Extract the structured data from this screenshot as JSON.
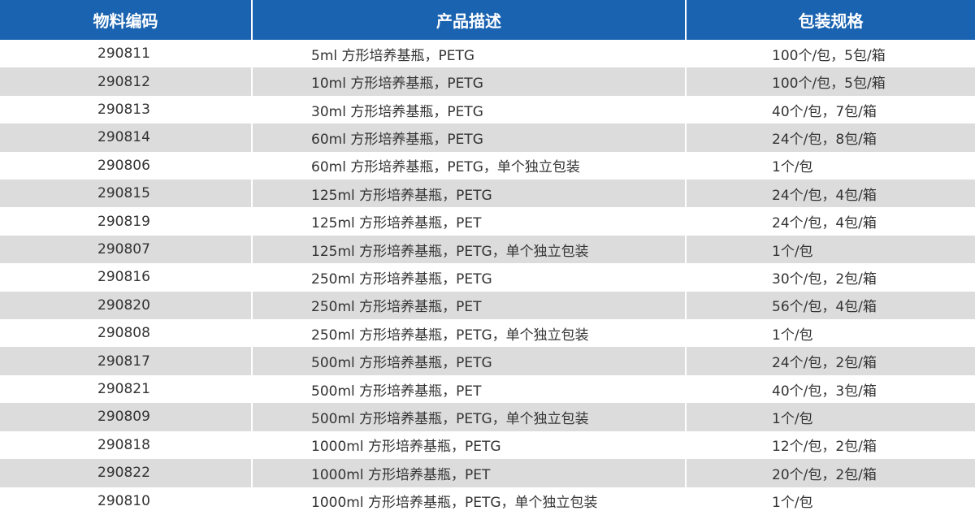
{
  "table": {
    "headers": [
      "物料编码",
      "产品描述",
      "包装规格"
    ],
    "rows": [
      {
        "code": "290811",
        "desc": "5ml 方形培养基瓶，PETG",
        "pack": "100个/包，5包/箱"
      },
      {
        "code": "290812",
        "desc": "10ml 方形培养基瓶，PETG",
        "pack": "100个/包，5包/箱"
      },
      {
        "code": "290813",
        "desc": "30ml 方形培养基瓶，PETG",
        "pack": "40个/包，7包/箱"
      },
      {
        "code": "290814",
        "desc": "60ml 方形培养基瓶，PETG",
        "pack": "24个/包，8包/箱"
      },
      {
        "code": "290806",
        "desc": "60ml 方形培养基瓶，PETG，单个独立包装",
        "pack": "1个/包"
      },
      {
        "code": "290815",
        "desc": "125ml 方形培养基瓶，PETG",
        "pack": "24个/包，4包/箱"
      },
      {
        "code": "290819",
        "desc": "125ml 方形培养基瓶，PET",
        "pack": "24个/包，4包/箱"
      },
      {
        "code": "290807",
        "desc": "125ml 方形培养基瓶，PETG，单个独立包装",
        "pack": "1个/包"
      },
      {
        "code": "290816",
        "desc": "250ml 方形培养基瓶，PETG",
        "pack": "30个/包，2包/箱"
      },
      {
        "code": "290820",
        "desc": "250ml 方形培养基瓶，PET",
        "pack": "56个/包，4包/箱"
      },
      {
        "code": "290808",
        "desc": "250ml 方形培养基瓶，PETG，单个独立包装",
        "pack": "1个/包"
      },
      {
        "code": "290817",
        "desc": "500ml 方形培养基瓶，PETG",
        "pack": "24个/包，2包/箱"
      },
      {
        "code": "290821",
        "desc": "500ml 方形培养基瓶，PET",
        "pack": "40个/包，3包/箱"
      },
      {
        "code": "290809",
        "desc": "500ml 方形培养基瓶，PETG，单个独立包装",
        "pack": "1个/包"
      },
      {
        "code": "290818",
        "desc": "1000ml 方形培养基瓶，PETG",
        "pack": "12个/包，2包/箱"
      },
      {
        "code": "290822",
        "desc": "1000ml 方形培养基瓶，PET",
        "pack": "20个/包，2包/箱"
      },
      {
        "code": "290810",
        "desc": "1000ml 方形培养基瓶，PETG，单个独立包装",
        "pack": "1个/包"
      }
    ]
  },
  "colors": {
    "header_bg": "#1a63b0",
    "header_text": "#ffffff",
    "row_alt_bg": "#dcdcdc",
    "row_bg": "#ffffff",
    "cell_text": "#333333"
  }
}
